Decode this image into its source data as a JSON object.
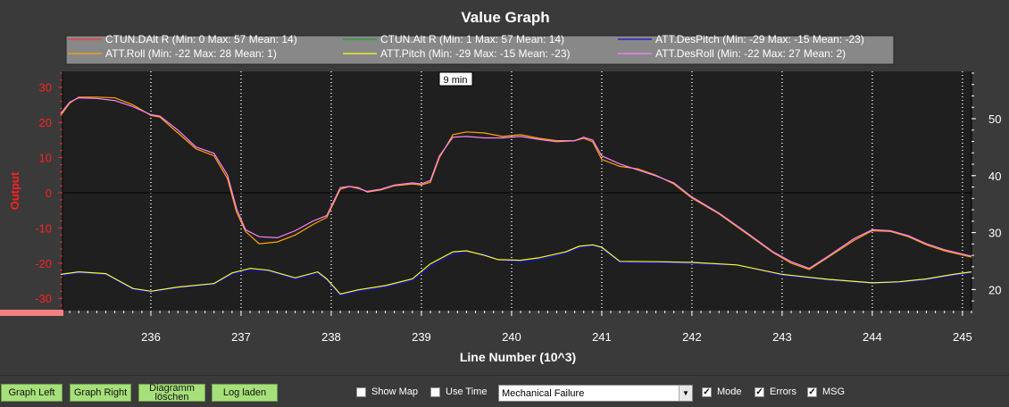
{
  "title": "Value Graph",
  "chart_data": {
    "type": "line",
    "title": "Value Graph",
    "xlabel": "Line Number (10^3)",
    "ylabel": "Output",
    "xlim": [
      235.02,
      245.1
    ],
    "ylim": [
      -33.5,
      34.5
    ],
    "y2lim": [
      16.3,
      58.3
    ],
    "xticks": [
      236,
      237,
      238,
      239,
      240,
      241,
      242,
      243,
      244,
      245
    ],
    "yticks": [
      30,
      20,
      10,
      0,
      -10,
      -20,
      -30
    ],
    "y2ticks": [
      50,
      40,
      30,
      20
    ],
    "annotation": "9 min",
    "annotation_x": 239.2,
    "grid": true,
    "legend_position": "top",
    "series": [
      {
        "name": "CTUN.DAlt R (Min: 0 Max: 57 Mean: 14)",
        "color": "#ff3030",
        "axis": "right",
        "visible": false,
        "x": [],
        "y": []
      },
      {
        "name": "CTUN.Alt R (Min: 1 Max: 57 Mean: 14)",
        "color": "#20a020",
        "axis": "right",
        "visible": false,
        "x": [],
        "y": []
      },
      {
        "name": "ATT.DesPitch (Min: -29 Max: -15 Mean: -23)",
        "color": "#1010e0",
        "axis": "left",
        "x": [
          235.0,
          235.2,
          235.5,
          235.8,
          236.0,
          236.3,
          236.7,
          236.9,
          237.1,
          237.3,
          237.6,
          237.85,
          237.95,
          238.1,
          238.3,
          238.6,
          238.9,
          239.1,
          239.35,
          239.5,
          239.7,
          239.85,
          240.1,
          240.3,
          240.6,
          240.75,
          240.9,
          241.0,
          241.2,
          241.6,
          242.0,
          242.5,
          243.0,
          243.5,
          244.0,
          244.3,
          244.6,
          244.9,
          245.1
        ],
        "y": [
          -23.5,
          -22.8,
          -23.2,
          -27.5,
          -28.2,
          -27.0,
          -26.0,
          -23.2,
          -22.0,
          -22.2,
          -24.5,
          -23.0,
          -24.8,
          -29.2,
          -28.0,
          -26.8,
          -25.0,
          -21.0,
          -17.5,
          -16.8,
          -17.5,
          -19.0,
          -19.8,
          -19.0,
          -17.2,
          -15.8,
          -15.0,
          -15.8,
          -19.8,
          -20.0,
          -20.2,
          -20.5,
          -23.5,
          -24.8,
          -25.8,
          -25.5,
          -24.8,
          -23.5,
          -22.8
        ]
      },
      {
        "name": "ATT.Roll (Min: -22 Max: 28 Mean: 1)",
        "color": "#ffa500",
        "axis": "left",
        "x": [
          235.0,
          235.1,
          235.2,
          235.4,
          235.6,
          235.8,
          236.0,
          236.1,
          236.3,
          236.5,
          236.7,
          236.85,
          236.95,
          237.05,
          237.2,
          237.4,
          237.6,
          237.8,
          237.95,
          238.1,
          238.2,
          238.3,
          238.4,
          238.55,
          238.7,
          238.9,
          239.0,
          239.1,
          239.2,
          239.35,
          239.5,
          239.7,
          239.9,
          240.1,
          240.3,
          240.5,
          240.7,
          240.8,
          240.9,
          241.0,
          241.2,
          241.4,
          241.6,
          241.8,
          242.0,
          242.3,
          242.6,
          242.9,
          243.1,
          243.3,
          243.5,
          243.8,
          244.0,
          244.2,
          244.4,
          244.6,
          244.8,
          245.1
        ],
        "y": [
          22.0,
          25.5,
          27.2,
          27.2,
          27.0,
          25.0,
          22.0,
          21.5,
          17.0,
          12.5,
          10.5,
          4.0,
          -5.5,
          -11.0,
          -14.5,
          -14.0,
          -12.0,
          -9.0,
          -7.0,
          1.0,
          1.8,
          1.5,
          0.2,
          0.8,
          2.0,
          2.5,
          2.2,
          3.0,
          10.0,
          16.5,
          17.3,
          17.0,
          16.0,
          16.5,
          15.5,
          14.8,
          14.8,
          15.5,
          14.5,
          9.5,
          7.5,
          6.8,
          5.0,
          2.5,
          -1.5,
          -6.0,
          -11.5,
          -17.0,
          -20.0,
          -21.8,
          -18.5,
          -13.5,
          -10.8,
          -11.0,
          -12.5,
          -14.8,
          -16.5,
          -18.3
        ]
      },
      {
        "name": "ATT.Pitch (Min: -29 Max: -15 Mean: -23)",
        "color": "#ffff20",
        "axis": "left",
        "x": [
          235.0,
          235.2,
          235.5,
          235.8,
          236.0,
          236.3,
          236.7,
          236.9,
          237.1,
          237.3,
          237.6,
          237.85,
          237.95,
          238.1,
          238.3,
          238.6,
          238.9,
          239.1,
          239.35,
          239.5,
          239.7,
          239.85,
          240.1,
          240.3,
          240.6,
          240.75,
          240.9,
          241.0,
          241.2,
          241.6,
          242.0,
          242.5,
          243.0,
          243.5,
          244.0,
          244.3,
          244.6,
          244.9,
          245.1
        ],
        "y": [
          -23.2,
          -22.5,
          -23.0,
          -27.2,
          -28.0,
          -26.8,
          -25.8,
          -22.8,
          -21.5,
          -22.0,
          -24.2,
          -22.5,
          -24.5,
          -28.8,
          -27.6,
          -26.4,
          -24.5,
          -20.2,
          -16.8,
          -16.5,
          -17.8,
          -19.0,
          -19.2,
          -18.5,
          -16.8,
          -15.2,
          -14.8,
          -15.5,
          -19.5,
          -19.6,
          -19.8,
          -20.5,
          -23.2,
          -24.6,
          -25.6,
          -25.3,
          -24.5,
          -23.2,
          -22.5
        ]
      },
      {
        "name": "ATT.DesRoll (Min: -22 Max: 27 Mean: 2)",
        "color": "#ff80ff",
        "axis": "left",
        "x": [
          235.0,
          235.1,
          235.2,
          235.4,
          235.6,
          235.8,
          236.0,
          236.1,
          236.3,
          236.5,
          236.7,
          236.85,
          236.95,
          237.05,
          237.2,
          237.4,
          237.6,
          237.8,
          237.95,
          238.1,
          238.2,
          238.3,
          238.4,
          238.55,
          238.7,
          238.9,
          239.0,
          239.1,
          239.2,
          239.35,
          239.5,
          239.7,
          239.9,
          240.1,
          240.3,
          240.5,
          240.7,
          240.8,
          240.9,
          241.0,
          241.2,
          241.4,
          241.6,
          241.8,
          242.0,
          242.3,
          242.6,
          242.9,
          243.1,
          243.3,
          243.5,
          243.8,
          244.0,
          244.2,
          244.4,
          244.6,
          244.8,
          245.1
        ],
        "y": [
          22.5,
          25.8,
          27.0,
          26.8,
          26.2,
          24.5,
          22.2,
          21.8,
          17.8,
          13.0,
          11.2,
          5.0,
          -4.5,
          -10.5,
          -12.5,
          -12.8,
          -10.8,
          -8.0,
          -6.5,
          1.5,
          1.8,
          1.2,
          0.4,
          1.0,
          2.2,
          2.8,
          2.5,
          3.5,
          10.5,
          15.8,
          16.0,
          15.6,
          15.6,
          16.0,
          15.2,
          14.5,
          14.8,
          15.8,
          15.0,
          10.5,
          8.2,
          6.5,
          4.8,
          2.8,
          -1.2,
          -5.8,
          -11.2,
          -16.8,
          -19.6,
          -21.5,
          -18.2,
          -13.0,
          -10.5,
          -10.8,
          -12.2,
          -14.5,
          -16.2,
          -18.0
        ]
      }
    ]
  },
  "controls": {
    "graph_left": "Graph Left",
    "graph_right": "Graph Right",
    "clear_line1": "Diagramm",
    "clear_line2": "löschen",
    "load_log": "Log laden",
    "show_map": "Show Map",
    "use_time": "Use Time",
    "dropdown_value": "Mechanical Failure",
    "mode": "Mode",
    "errors": "Errors",
    "msg": "MSG",
    "show_map_checked": false,
    "use_time_checked": false,
    "mode_checked": true,
    "errors_checked": true,
    "msg_checked": true
  }
}
